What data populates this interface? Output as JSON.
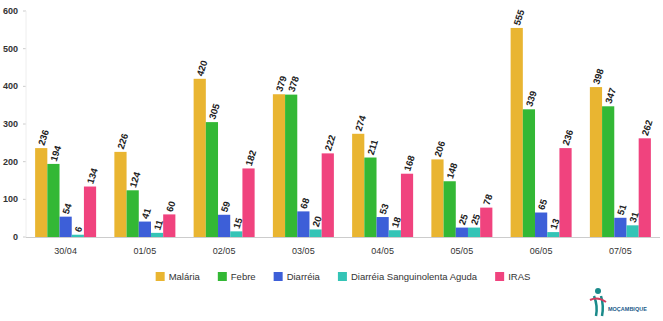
{
  "chart_data": {
    "type": "bar",
    "categories": [
      "30/04",
      "01/05",
      "02/05",
      "03/05",
      "04/05",
      "05/05",
      "06/05",
      "07/05"
    ],
    "series": [
      {
        "name": "Malária",
        "color": "#e9b531",
        "values": [
          236,
          226,
          420,
          379,
          274,
          206,
          555,
          398
        ]
      },
      {
        "name": "Febre",
        "color": "#33b835",
        "values": [
          194,
          124,
          305,
          378,
          211,
          148,
          339,
          347
        ]
      },
      {
        "name": "Diarréia",
        "color": "#3d5fd8",
        "values": [
          54,
          41,
          59,
          68,
          53,
          25,
          65,
          51
        ]
      },
      {
        "name": "Diarréia Sanguinolenta Aguda",
        "color": "#34c4b6",
        "values": [
          6,
          11,
          15,
          20,
          18,
          25,
          13,
          31
        ]
      },
      {
        "name": "IRAS",
        "color": "#f0437e",
        "values": [
          134,
          60,
          182,
          222,
          168,
          78,
          236,
          262
        ]
      }
    ],
    "ylim": [
      0,
      600
    ],
    "yticks": [
      0,
      100,
      200,
      300,
      400,
      500,
      600
    ],
    "grid": false,
    "data_labels": true,
    "legend": "bottom",
    "annotations": [
      "MOÇAMBIQUE"
    ]
  }
}
